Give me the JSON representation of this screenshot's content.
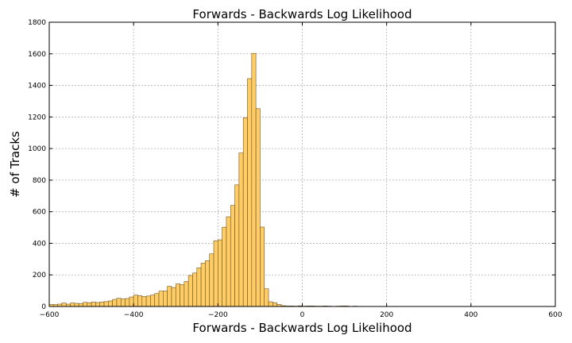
{
  "chart_data": {
    "type": "bar",
    "title": "Forwards - Backwards Log Likelihood",
    "xlabel": "Forwards - Backwards Log Likelihood",
    "ylabel": "# of Tracks",
    "xlim": [
      -600,
      600
    ],
    "ylim": [
      0,
      1800
    ],
    "xticks": [
      -600,
      -400,
      -200,
      0,
      200,
      400,
      600
    ],
    "yticks": [
      0,
      200,
      400,
      600,
      800,
      1000,
      1200,
      1400,
      1600,
      1800
    ],
    "xtick_labels": [
      "−600",
      "−400",
      "−200",
      "0",
      "200",
      "400",
      "600"
    ],
    "ytick_labels": [
      "0",
      "200",
      "400",
      "600",
      "800",
      "1000",
      "1200",
      "1400",
      "1600",
      "1800"
    ],
    "grid": true,
    "bin_width": 10,
    "series": [
      {
        "bins": [
          [
            -600,
            13
          ],
          [
            -590,
            12
          ],
          [
            -580,
            15
          ],
          [
            -570,
            22
          ],
          [
            -560,
            15
          ],
          [
            -550,
            22
          ],
          [
            -540,
            20
          ],
          [
            -530,
            18
          ],
          [
            -520,
            26
          ],
          [
            -510,
            24
          ],
          [
            -500,
            28
          ],
          [
            -490,
            25
          ],
          [
            -480,
            28
          ],
          [
            -470,
            31
          ],
          [
            -460,
            35
          ],
          [
            -450,
            45
          ],
          [
            -440,
            52
          ],
          [
            -430,
            48
          ],
          [
            -420,
            50
          ],
          [
            -410,
            60
          ],
          [
            -400,
            72
          ],
          [
            -390,
            68
          ],
          [
            -380,
            63
          ],
          [
            -370,
            66
          ],
          [
            -360,
            72
          ],
          [
            -350,
            82
          ],
          [
            -340,
            97
          ],
          [
            -330,
            98
          ],
          [
            -320,
            128
          ],
          [
            -310,
            120
          ],
          [
            -300,
            143
          ],
          [
            -290,
            138
          ],
          [
            -280,
            158
          ],
          [
            -270,
            196
          ],
          [
            -260,
            212
          ],
          [
            -250,
            245
          ],
          [
            -240,
            274
          ],
          [
            -230,
            290
          ],
          [
            -220,
            333
          ],
          [
            -210,
            416
          ],
          [
            -200,
            422
          ],
          [
            -190,
            502
          ],
          [
            -180,
            568
          ],
          [
            -170,
            640
          ],
          [
            -160,
            770
          ],
          [
            -150,
            972
          ],
          [
            -140,
            1195
          ],
          [
            -130,
            1443
          ],
          [
            -120,
            1603
          ],
          [
            -110,
            1253
          ],
          [
            -100,
            503
          ],
          [
            -90,
            112
          ],
          [
            -80,
            30
          ],
          [
            -70,
            24
          ],
          [
            -60,
            13
          ],
          [
            -50,
            5
          ],
          [
            -40,
            3
          ],
          [
            -30,
            3
          ],
          [
            -20,
            2
          ],
          [
            -10,
            4
          ],
          [
            0,
            2
          ],
          [
            10,
            3
          ],
          [
            20,
            3
          ],
          [
            30,
            2
          ],
          [
            40,
            2
          ],
          [
            50,
            3
          ],
          [
            60,
            2
          ],
          [
            70,
            1
          ],
          [
            80,
            2
          ],
          [
            90,
            3
          ],
          [
            100,
            3
          ],
          [
            110,
            1
          ],
          [
            120,
            2
          ],
          [
            130,
            1
          ],
          [
            140,
            0
          ],
          [
            150,
            1
          ],
          [
            160,
            0
          ],
          [
            170,
            0
          ],
          [
            180,
            0
          ],
          [
            190,
            0
          ],
          [
            200,
            0
          ],
          [
            210,
            0
          ],
          [
            220,
            0
          ],
          [
            230,
            0
          ],
          [
            240,
            0
          ],
          [
            250,
            0
          ],
          [
            260,
            0
          ],
          [
            270,
            0
          ],
          [
            280,
            0
          ],
          [
            290,
            0
          ],
          [
            300,
            0
          ],
          [
            310,
            0
          ],
          [
            320,
            0
          ],
          [
            330,
            0
          ],
          [
            340,
            0
          ],
          [
            350,
            0
          ],
          [
            360,
            0
          ],
          [
            370,
            0
          ],
          [
            380,
            0
          ],
          [
            390,
            0
          ]
        ]
      }
    ]
  }
}
